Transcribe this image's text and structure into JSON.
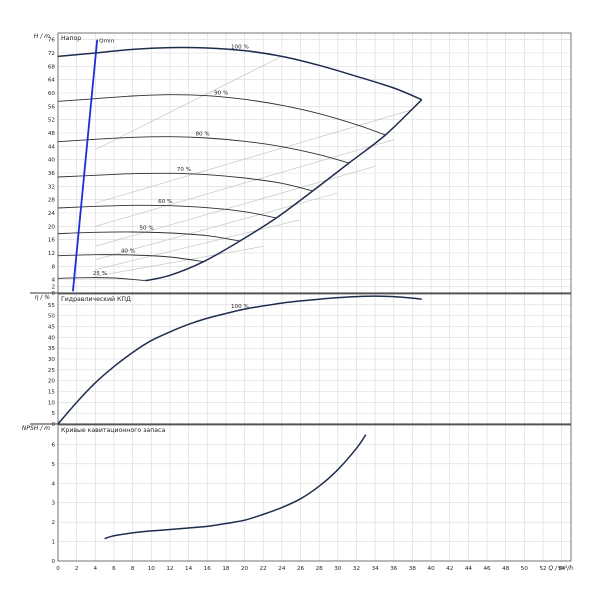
{
  "chart_data": [
    {
      "type": "line",
      "panel": "head",
      "title": "Напор",
      "ylabel": "H / m",
      "xlim": [
        0,
        55
      ],
      "ylim": [
        0,
        78
      ],
      "x_ticks": [
        0,
        2,
        4,
        6,
        8,
        10,
        12,
        14,
        16,
        18,
        20,
        22,
        24,
        26,
        28,
        30,
        32,
        34,
        36,
        38,
        40,
        42,
        44,
        46,
        48,
        50,
        52,
        54
      ],
      "y_ticks": [
        0,
        2,
        4,
        8,
        12,
        16,
        20,
        24,
        28,
        32,
        36,
        40,
        44,
        48,
        52,
        56,
        60,
        64,
        68,
        72,
        76
      ],
      "grid": true,
      "series": [
        {
          "name": "100 %",
          "x": [
            0,
            4,
            8,
            12,
            16,
            20,
            24,
            28,
            32,
            36,
            39
          ],
          "y": [
            71.0,
            72.0,
            73.1,
            73.6,
            73.5,
            72.7,
            71.0,
            68.3,
            65.0,
            61.5,
            58.0
          ]
        },
        {
          "name": "90 %",
          "x": [
            0,
            4,
            8,
            12,
            16,
            20,
            24,
            28,
            32,
            35.1
          ],
          "y": [
            57.5,
            58.3,
            59.1,
            59.5,
            59.2,
            58.1,
            56.3,
            53.8,
            50.5,
            47.4
          ]
        },
        {
          "name": "80 %",
          "x": [
            0,
            4,
            8,
            12,
            16,
            20,
            24,
            28,
            31.2
          ],
          "y": [
            45.4,
            46.1,
            46.7,
            46.9,
            46.5,
            45.5,
            43.9,
            41.5,
            39.0
          ]
        },
        {
          "name": "70 %",
          "x": [
            0,
            4,
            8,
            12,
            16,
            20,
            24,
            27.3
          ],
          "y": [
            34.8,
            35.3,
            35.8,
            35.9,
            35.5,
            34.5,
            32.9,
            30.6
          ]
        },
        {
          "name": "60 %",
          "x": [
            0,
            4,
            8,
            12,
            16,
            20,
            23.4
          ],
          "y": [
            25.5,
            26.0,
            26.3,
            26.2,
            25.6,
            24.4,
            22.5
          ]
        },
        {
          "name": "50 %",
          "x": [
            0,
            4,
            8,
            12,
            16,
            19.5
          ],
          "y": [
            17.8,
            18.2,
            18.3,
            18.0,
            17.2,
            15.6
          ]
        },
        {
          "name": "40 %",
          "x": [
            0,
            4,
            8,
            12,
            15.6
          ],
          "y": [
            11.2,
            11.5,
            11.4,
            10.8,
            9.4
          ]
        },
        {
          "name": "25 %",
          "x": [
            0,
            3,
            6,
            9.4
          ],
          "y": [
            4.4,
            4.6,
            4.5,
            3.7
          ]
        }
      ],
      "envelope": {
        "x": [
          9.4,
          12,
          15.6,
          19.5,
          23.4,
          27.3,
          31.2,
          35.1,
          39
        ],
        "y": [
          3.7,
          5.3,
          9.4,
          15.6,
          22.5,
          30.6,
          39.0,
          47.4,
          58.0
        ]
      },
      "efficiency_lines": [
        {
          "x": [
            4,
            24
          ],
          "y": [
            43,
            71
          ]
        },
        {
          "x": [
            4,
            38
          ],
          "y": [
            27,
            55
          ]
        },
        {
          "x": [
            4,
            36
          ],
          "y": [
            20,
            46
          ]
        },
        {
          "x": [
            4,
            34
          ],
          "y": [
            14,
            38
          ]
        },
        {
          "x": [
            4,
            30
          ],
          "y": [
            10,
            30
          ]
        },
        {
          "x": [
            4,
            26
          ],
          "y": [
            7,
            22
          ]
        },
        {
          "x": [
            4,
            22
          ],
          "y": [
            5,
            14
          ]
        }
      ],
      "qmin": {
        "label": "Qmin",
        "x": [
          1.6,
          4.2
        ],
        "y": [
          0.5,
          76
        ]
      }
    },
    {
      "type": "line",
      "panel": "efficiency",
      "title": "Гидравлический КПД",
      "ylabel": "η / %",
      "xlim": [
        0,
        55
      ],
      "ylim": [
        0,
        60
      ],
      "y_ticks": [
        0,
        5,
        10,
        15,
        20,
        25,
        30,
        35,
        40,
        45,
        50,
        55
      ],
      "grid": true,
      "series": [
        {
          "name": "100 %",
          "x": [
            0,
            2,
            4,
            6,
            8,
            10,
            12,
            14,
            16,
            18,
            20,
            22,
            24,
            26,
            28,
            30,
            32,
            34,
            36,
            38,
            39
          ],
          "y": [
            0,
            10,
            19,
            26.5,
            33,
            38.5,
            42.5,
            46,
            48.8,
            51,
            53,
            54.5,
            55.8,
            56.8,
            57.6,
            58.3,
            58.8,
            59,
            58.8,
            58.1,
            57.6
          ]
        }
      ]
    },
    {
      "type": "line",
      "panel": "npsh",
      "title": "Кривые кавитационного запаса",
      "ylabel": "NPSH / m",
      "xlabel": "Q / m³/h",
      "xlim": [
        0,
        55
      ],
      "ylim": [
        0,
        7
      ],
      "y_ticks": [
        0,
        1,
        2,
        3,
        4,
        5,
        6
      ],
      "grid": true,
      "series": [
        {
          "name": "",
          "x": [
            5,
            6,
            8,
            10,
            12,
            14,
            16,
            18,
            20,
            22,
            24,
            26,
            28,
            30,
            32,
            33
          ],
          "y": [
            1.15,
            1.3,
            1.45,
            1.55,
            1.62,
            1.7,
            1.78,
            1.93,
            2.1,
            2.4,
            2.75,
            3.2,
            3.85,
            4.7,
            5.8,
            6.5
          ]
        }
      ]
    }
  ],
  "x_tick_labels": [
    "0",
    "2",
    "4",
    "6",
    "8",
    "10",
    "12",
    "14",
    "16",
    "18",
    "20",
    "22",
    "24",
    "26",
    "28",
    "30",
    "32",
    "34",
    "36",
    "38",
    "40",
    "42",
    "44",
    "46",
    "48",
    "50",
    "52",
    "54"
  ]
}
